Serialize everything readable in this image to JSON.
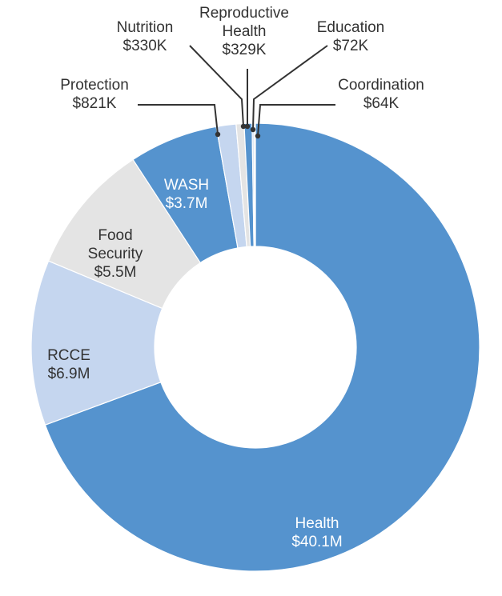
{
  "chart_data": {
    "type": "pie",
    "donut": true,
    "sort": "descending, clockwise from top",
    "series": [
      {
        "name": "Health",
        "label_lines": [
          "Health"
        ],
        "value_label": "$40.1M",
        "value": 40.1,
        "color": "#5593ce",
        "label_style": "light",
        "external": false
      },
      {
        "name": "RCCE",
        "label_lines": [
          "RCCE"
        ],
        "value_label": "$6.9M",
        "value": 6.9,
        "color": "#c5d6ef",
        "label_style": "dark",
        "external": false
      },
      {
        "name": "Food Security",
        "label_lines": [
          "Food",
          "Security"
        ],
        "value_label": "$5.5M",
        "value": 5.5,
        "color": "#e4e4e4",
        "label_style": "dark",
        "external": false
      },
      {
        "name": "WASH",
        "label_lines": [
          "WASH"
        ],
        "value_label": "$3.7M",
        "value": 3.7,
        "color": "#5593ce",
        "label_style": "light",
        "external": false
      },
      {
        "name": "Protection",
        "label_lines": [
          "Protection"
        ],
        "value_label": "$821K",
        "value": 0.821,
        "color": "#c5d6ef",
        "label_style": "dark",
        "external": true
      },
      {
        "name": "Nutrition",
        "label_lines": [
          "Nutrition"
        ],
        "value_label": "$330K",
        "value": 0.33,
        "color": "#e4e4e4",
        "label_style": "dark",
        "external": true
      },
      {
        "name": "Reproductive Health",
        "label_lines": [
          "Reproductive",
          "Health"
        ],
        "value_label": "$329K",
        "value": 0.329,
        "color": "#5593ce",
        "label_style": "dark",
        "external": true
      },
      {
        "name": "Education",
        "label_lines": [
          "Education"
        ],
        "value_label": "$72K",
        "value": 0.072,
        "color": "#c5d6ef",
        "label_style": "dark",
        "external": true
      },
      {
        "name": "Coordination",
        "label_lines": [
          "Coordination"
        ],
        "value_label": "$64K",
        "value": 0.064,
        "color": "#e4e4e4",
        "label_style": "dark",
        "external": true
      }
    ]
  }
}
